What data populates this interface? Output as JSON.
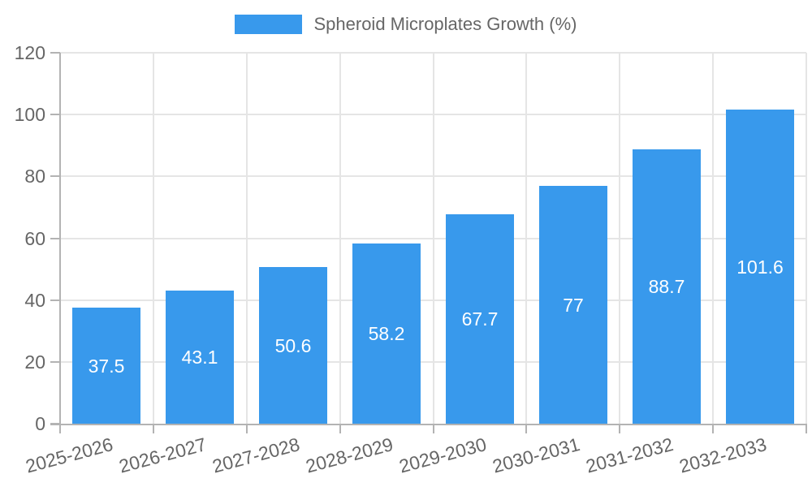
{
  "legend": {
    "label": "Spheroid Microplates Growth (%)"
  },
  "chart_data": {
    "type": "bar",
    "title": "Spheroid Microplates Growth (%)",
    "series_name": "Spheroid Microplates Growth (%)",
    "categories": [
      "2025-2026",
      "2026-2027",
      "2027-2028",
      "2028-2029",
      "2029-2030",
      "2030-2031",
      "2031-2032",
      "2032-2033"
    ],
    "values": [
      37.5,
      43.1,
      50.6,
      58.2,
      67.7,
      77,
      88.7,
      101.6
    ],
    "value_labels": [
      "37.5",
      "43.1",
      "50.6",
      "58.2",
      "67.7",
      "77",
      "88.7",
      "101.6"
    ],
    "xlabel": "",
    "ylabel": "",
    "ylim": [
      0,
      120
    ],
    "yticks": [
      0,
      20,
      40,
      60,
      80,
      100,
      120
    ],
    "grid": true,
    "legend_position": "top",
    "x_label_rotation_deg": -15,
    "colors": {
      "bar": "#3899EC",
      "grid": "#E5E5E5",
      "axis": "#B3B3B3",
      "tick_text": "#666666",
      "value_text": "#FFFFFF",
      "background": "#FFFFFF"
    }
  }
}
